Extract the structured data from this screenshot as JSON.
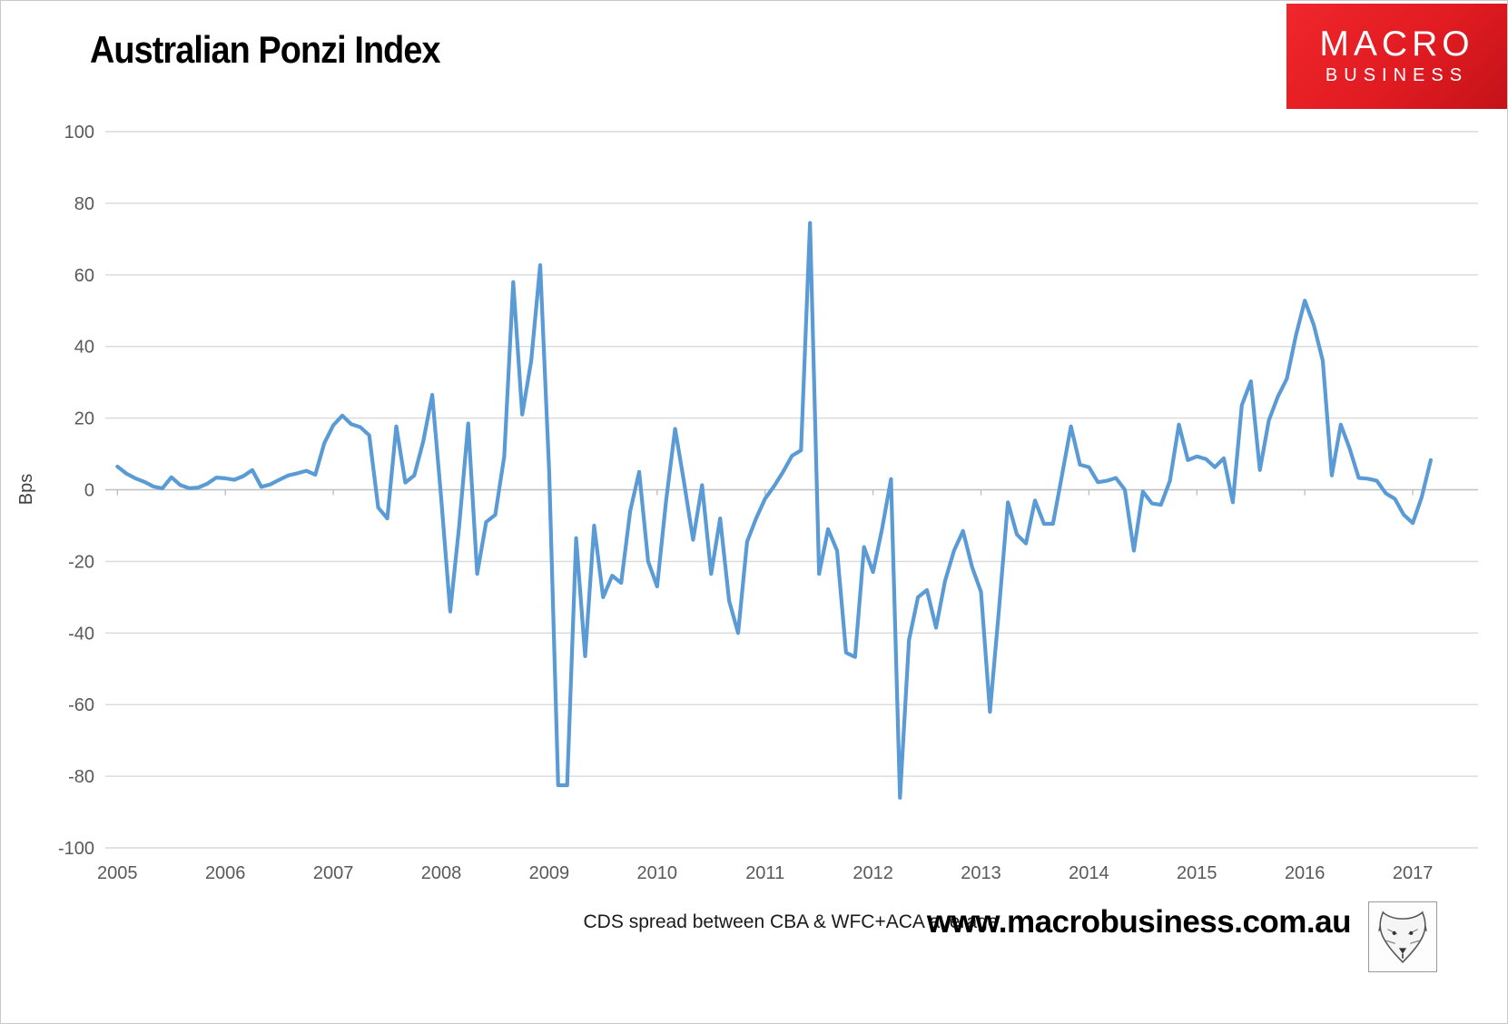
{
  "header": {
    "title": "Australian Ponzi Index"
  },
  "logo": {
    "line1": "MACRO",
    "line2": "BUSINESS",
    "bg_color": "#e11b22",
    "text_color": "#ffffff"
  },
  "footer": {
    "caption": "CDS spread between CBA & WFC+ACA average",
    "website": "www.macrobusiness.com.au",
    "wolf_icon": "wolf-logo"
  },
  "chart_data": {
    "type": "line",
    "title": "Australian Ponzi Index",
    "xlabel": "",
    "ylabel": "Bps",
    "ylim": [
      -100,
      100
    ],
    "ytick_step": 20,
    "grid": true,
    "legend_position": "none",
    "line_color": "#5B9BD5",
    "grid_color": "#D9D9D9",
    "zero_axis_color": "#BFBFBF",
    "label_color": "#595959",
    "x_years": [
      2005,
      2006,
      2007,
      2008,
      2009,
      2010,
      2011,
      2012,
      2013,
      2014,
      2015,
      2016,
      2017
    ],
    "start": "2005-01",
    "frequency": "monthly",
    "series": [
      {
        "name": "CDS spread between CBA & WFC+ACA average",
        "values": [
          6.5,
          4.5,
          3.2,
          2.2,
          0.9,
          0.4,
          3.5,
          1.3,
          0.4,
          0.6,
          1.7,
          3.4,
          3.2,
          2.8,
          3.8,
          5.5,
          0.8,
          1.5,
          2.8,
          4.0,
          4.6,
          5.3,
          4.2,
          13,
          18,
          20.7,
          18.3,
          17.5,
          15.2,
          -5,
          -8,
          17.7,
          2,
          4,
          13.5,
          26.5,
          -2.5,
          -34,
          -10,
          18.5,
          -23.5,
          -9,
          -7,
          9.3,
          58,
          21,
          36,
          62.7,
          5,
          -82.5,
          -82.5,
          -13.5,
          -46.5,
          -10,
          -30,
          -24,
          -26,
          -6,
          5,
          -20,
          -27,
          -3,
          17,
          2,
          -14,
          1.3,
          -23.5,
          -8,
          -31,
          -40,
          -14.5,
          -8,
          -2.5,
          1,
          5,
          9.5,
          11,
          74.5,
          -23.5,
          -11,
          -17,
          -45.5,
          -46.7,
          -16,
          -23,
          -11,
          3,
          -86,
          -42,
          -30,
          -28,
          -38.5,
          -25.5,
          -17,
          -11.5,
          -21.5,
          -28.5,
          -62,
          -33.5,
          -3.5,
          -12.5,
          -15,
          -3,
          -9.5,
          -9.5,
          4,
          17.7,
          7,
          6.3,
          2.1,
          2.5,
          3.3,
          0,
          -17,
          -0.5,
          -3.8,
          -4.2,
          2.5,
          18.2,
          8.3,
          9.3,
          8.6,
          6.3,
          8.8,
          -3.5,
          23.6,
          30.3,
          5.5,
          19.4,
          26,
          31,
          43,
          52.8,
          46,
          36,
          4,
          18.2,
          11.4,
          3.3,
          3.1,
          2.5,
          -1,
          -2.5,
          -7,
          -9.3,
          -2,
          8.3
        ]
      }
    ]
  }
}
